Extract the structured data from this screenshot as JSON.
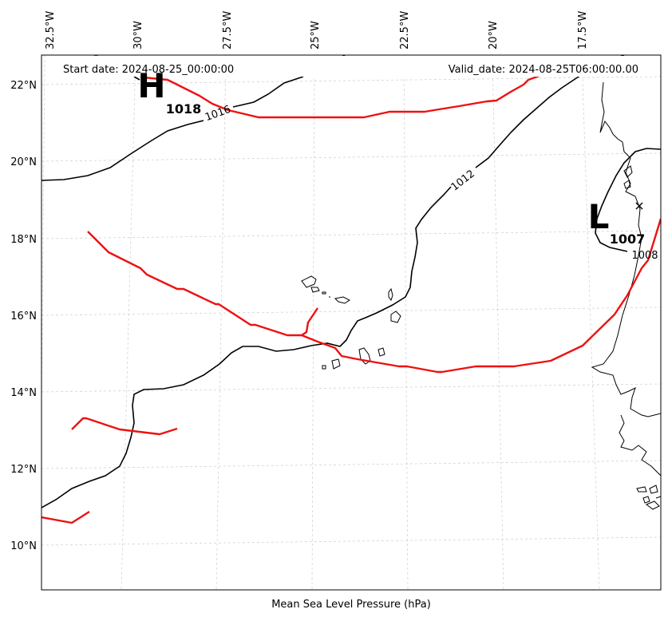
{
  "header": {
    "start_date": "Start date: 2024-08-25_00:00:00",
    "valid_date": "Valid_date: 2024-08-25T06:00:00.00"
  },
  "bottom_label": "Mean Sea Level Pressure (hPa)",
  "longitude_ticks": [
    "32.5°W",
    "30°W",
    "27.5°W",
    "25°W",
    "22.5°W",
    "20°W",
    "17.5°W"
  ],
  "latitude_ticks": [
    "22°N",
    "20°N",
    "18°N",
    "16°N",
    "14°N",
    "12°N",
    "10°N"
  ],
  "contour_labels": [
    "1016",
    "1012",
    "1008"
  ],
  "pressure_centers": {
    "high": {
      "letter": "H",
      "value": "1018"
    },
    "low": {
      "letter": "L",
      "value": "1007"
    }
  },
  "colors": {
    "isobar": "#000000",
    "trough": "#ee1111",
    "coastline": "#000000",
    "gridline": "#cccccc"
  }
}
